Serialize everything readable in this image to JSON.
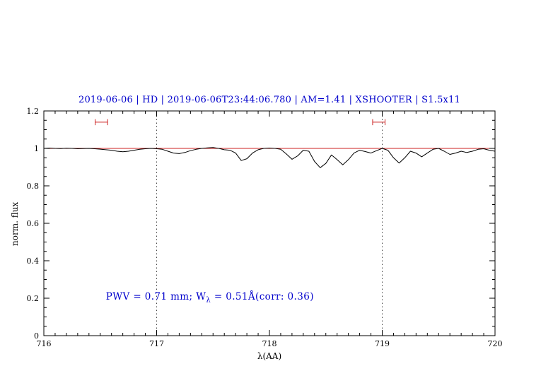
{
  "chart_data": {
    "type": "line",
    "title": "2019-06-06 | HD | 2019-06-06T23:44:06.780 | AM=1.41 | XSHOOTER | S1.5x11",
    "xlabel": "λ(AA)",
    "ylabel": "norm. flux",
    "xlim": [
      716,
      720
    ],
    "ylim": [
      0,
      1.2
    ],
    "x_ticks": {
      "major": [
        716,
        717,
        718,
        719,
        720
      ],
      "labels": [
        "716",
        "717",
        "718",
        "719",
        "720"
      ],
      "minor_step": 0.1
    },
    "y_ticks": {
      "major": [
        0,
        0.2,
        0.4,
        0.6,
        0.8,
        1,
        1.2
      ],
      "labels": [
        "0",
        "0.2",
        "0.4",
        "0.6",
        "0.8",
        "1",
        "1.2"
      ],
      "minor_step": 0.05
    },
    "grid": "off",
    "dotted_vlines": [
      717,
      719
    ],
    "continuum_line": {
      "y": 1.0,
      "color": "#cc2222"
    },
    "range_markers": [
      {
        "center": 716.51,
        "half_width": 0.055,
        "y": 1.14,
        "cap_half_height": 0.016,
        "color": "#cc2222"
      },
      {
        "center": 718.97,
        "half_width": 0.055,
        "y": 1.14,
        "cap_half_height": 0.016,
        "color": "#cc2222"
      }
    ],
    "annotation": {
      "pre": "PWV = 0.71 mm; W",
      "sub": "λ",
      "post": " = 0.51Å(corr: 0.36)",
      "x": 716.55,
      "y": 0.2,
      "color": "#0000cc"
    },
    "colors": {
      "title": "#0000cc",
      "axis": "#000000",
      "spectrum": "#000000",
      "model": "#cc2222",
      "dotted": "#444444"
    },
    "series": [
      {
        "name": "spectrum",
        "color": "#000000",
        "points": [
          [
            716.0,
            1.0
          ],
          [
            716.05,
            1.002
          ],
          [
            716.1,
            1.0
          ],
          [
            716.15,
            0.999
          ],
          [
            716.2,
            1.001
          ],
          [
            716.25,
            1.0
          ],
          [
            716.3,
            0.998
          ],
          [
            716.35,
            0.999
          ],
          [
            716.4,
            1.0
          ],
          [
            716.45,
            0.998
          ],
          [
            716.5,
            0.996
          ],
          [
            716.55,
            0.993
          ],
          [
            716.6,
            0.99
          ],
          [
            716.65,
            0.985
          ],
          [
            716.7,
            0.982
          ],
          [
            716.75,
            0.985
          ],
          [
            716.8,
            0.99
          ],
          [
            716.85,
            0.995
          ],
          [
            716.9,
            0.998
          ],
          [
            716.95,
            1.0
          ],
          [
            717.0,
            0.998
          ],
          [
            717.05,
            0.995
          ],
          [
            717.1,
            0.985
          ],
          [
            717.15,
            0.975
          ],
          [
            717.2,
            0.972
          ],
          [
            717.25,
            0.978
          ],
          [
            717.3,
            0.988
          ],
          [
            717.35,
            0.995
          ],
          [
            717.4,
            1.0
          ],
          [
            717.45,
            1.003
          ],
          [
            717.5,
            1.005
          ],
          [
            717.55,
            1.0
          ],
          [
            717.6,
            0.993
          ],
          [
            717.65,
            0.99
          ],
          [
            717.7,
            0.975
          ],
          [
            717.75,
            0.935
          ],
          [
            717.8,
            0.945
          ],
          [
            717.85,
            0.975
          ],
          [
            717.9,
            0.993
          ],
          [
            717.95,
            1.0
          ],
          [
            718.0,
            1.002
          ],
          [
            718.05,
            1.0
          ],
          [
            718.1,
            0.995
          ],
          [
            718.15,
            0.97
          ],
          [
            718.2,
            0.942
          ],
          [
            718.25,
            0.96
          ],
          [
            718.3,
            0.99
          ],
          [
            718.35,
            0.985
          ],
          [
            718.4,
            0.93
          ],
          [
            718.45,
            0.897
          ],
          [
            718.5,
            0.92
          ],
          [
            718.55,
            0.965
          ],
          [
            718.6,
            0.94
          ],
          [
            718.65,
            0.912
          ],
          [
            718.7,
            0.94
          ],
          [
            718.75,
            0.975
          ],
          [
            718.8,
            0.99
          ],
          [
            718.85,
            0.983
          ],
          [
            718.9,
            0.975
          ],
          [
            718.95,
            0.988
          ],
          [
            719.0,
            1.0
          ],
          [
            719.05,
            0.99
          ],
          [
            719.1,
            0.95
          ],
          [
            719.15,
            0.922
          ],
          [
            719.2,
            0.95
          ],
          [
            719.25,
            0.985
          ],
          [
            719.3,
            0.975
          ],
          [
            719.35,
            0.955
          ],
          [
            719.4,
            0.975
          ],
          [
            719.45,
            0.995
          ],
          [
            719.5,
            1.0
          ],
          [
            719.55,
            0.985
          ],
          [
            719.6,
            0.968
          ],
          [
            719.65,
            0.975
          ],
          [
            719.7,
            0.985
          ],
          [
            719.75,
            0.978
          ],
          [
            719.8,
            0.985
          ],
          [
            719.85,
            0.995
          ],
          [
            719.9,
            0.998
          ],
          [
            719.95,
            0.99
          ],
          [
            720.0,
            0.985
          ]
        ]
      }
    ]
  }
}
